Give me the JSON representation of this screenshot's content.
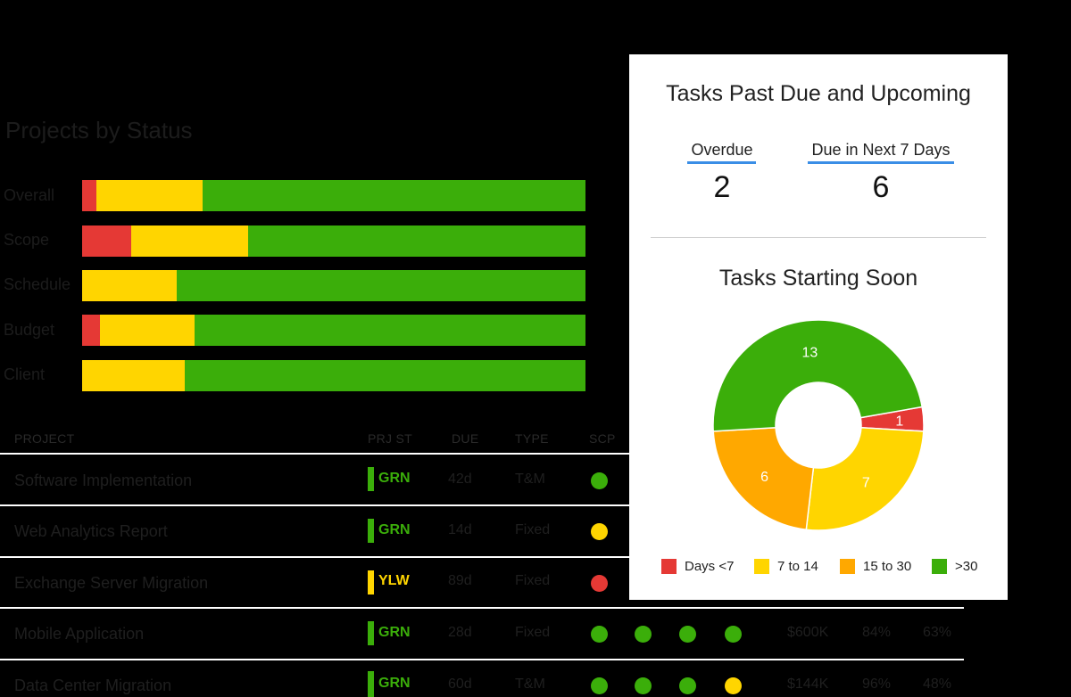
{
  "projects_by_status": {
    "title": "Projects by Status",
    "rows": [
      {
        "label": "Overall",
        "segments": [
          {
            "color": "#e53935",
            "value": 2.9
          },
          {
            "color": "#ffd500",
            "value": 21.1
          },
          {
            "color": "#3bae0a",
            "value": 76.0
          }
        ]
      },
      {
        "label": "Scope",
        "segments": [
          {
            "color": "#e53935",
            "value": 9.8
          },
          {
            "color": "#ffd500",
            "value": 23.2
          },
          {
            "color": "#3bae0a",
            "value": 67.0
          }
        ]
      },
      {
        "label": "Schedule",
        "segments": [
          {
            "color": "#ffd500",
            "value": 18.8
          },
          {
            "color": "#3bae0a",
            "value": 81.2
          }
        ]
      },
      {
        "label": "Budget",
        "segments": [
          {
            "color": "#e53935",
            "value": 3.6
          },
          {
            "color": "#ffd500",
            "value": 18.8
          },
          {
            "color": "#3bae0a",
            "value": 77.6
          }
        ]
      },
      {
        "label": "Client",
        "segments": [
          {
            "color": "#ffd500",
            "value": 20.4
          },
          {
            "color": "#3bae0a",
            "value": 79.6
          }
        ]
      }
    ]
  },
  "table": {
    "headers": {
      "project": "PROJECT",
      "prj_st": "PRJ ST",
      "due": "DUE",
      "type": "TYPE",
      "scp": "SCP"
    },
    "rows": [
      {
        "name": "Software Implementation",
        "status": "GRN",
        "status_color": "#3bae0a",
        "due": "42d",
        "type": "T&M",
        "dots": [
          "#3bae0a"
        ],
        "budget": "",
        "pct1": "",
        "pct2": ""
      },
      {
        "name": "Web Analytics Report",
        "status": "GRN",
        "status_color": "#3bae0a",
        "due": "14d",
        "type": "Fixed",
        "dots": [
          "#ffd500"
        ],
        "budget": "",
        "pct1": "",
        "pct2": ""
      },
      {
        "name": "Exchange Server Migration",
        "status": "YLW",
        "status_color": "#ffd500",
        "due": "89d",
        "type": "Fixed",
        "dots": [
          "#e53935"
        ],
        "budget": "",
        "pct1": "",
        "pct2": ""
      },
      {
        "name": "Mobile Application",
        "status": "GRN",
        "status_color": "#3bae0a",
        "due": "28d",
        "type": "Fixed",
        "dots": [
          "#3bae0a",
          "#3bae0a",
          "#3bae0a",
          "#3bae0a"
        ],
        "budget": "$600K",
        "pct1": "84%",
        "pct2": "63%"
      },
      {
        "name": "Data Center Migration",
        "status": "GRN",
        "status_color": "#3bae0a",
        "due": "60d",
        "type": "T&M",
        "dots": [
          "#3bae0a",
          "#3bae0a",
          "#3bae0a",
          "#ffd500"
        ],
        "budget": "$144K",
        "pct1": "96%",
        "pct2": "48%"
      }
    ]
  },
  "panel": {
    "title": "Tasks Past Due and Upcoming",
    "overdue": {
      "label": "Overdue",
      "value": "2"
    },
    "due_next": {
      "label": "Due in Next 7 Days",
      "value": "6"
    },
    "donut_title": "Tasks Starting Soon",
    "accent_color": "#3a8ee6"
  },
  "chart_data": {
    "type": "pie",
    "title": "Tasks Starting Soon",
    "slices": [
      {
        "label": "Days <7",
        "value": 1,
        "color": "#e53935"
      },
      {
        "label": "7 to 14",
        "value": 7,
        "color": "#ffd500"
      },
      {
        "label": "15 to 30",
        "value": 6,
        "color": "#ffa800"
      },
      {
        "label": ">30",
        "value": 13,
        "color": "#3bae0a"
      }
    ],
    "legend": [
      "Days <7",
      "7 to 14",
      "15 to 30",
      ">30"
    ],
    "legend_position": "bottom"
  }
}
